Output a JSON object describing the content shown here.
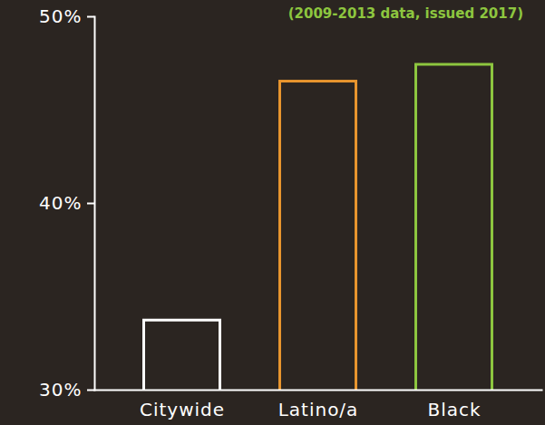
{
  "chart_data": {
    "type": "bar",
    "subtitle": "(2009-2013 data, issued 2017)",
    "subtitle_color": "#8dc63f",
    "categories": [
      "Citywide",
      "Latino/a",
      "Black"
    ],
    "values": [
      33.8,
      46.6,
      47.5
    ],
    "colors": [
      "#ffffff",
      "#e8952e",
      "#8dc63f"
    ],
    "ylim": [
      30,
      50
    ],
    "yticks": [
      {
        "value": 30,
        "label": "30%"
      },
      {
        "value": 40,
        "label": "40%"
      },
      {
        "value": 50,
        "label": "50%"
      }
    ],
    "grid": false
  }
}
